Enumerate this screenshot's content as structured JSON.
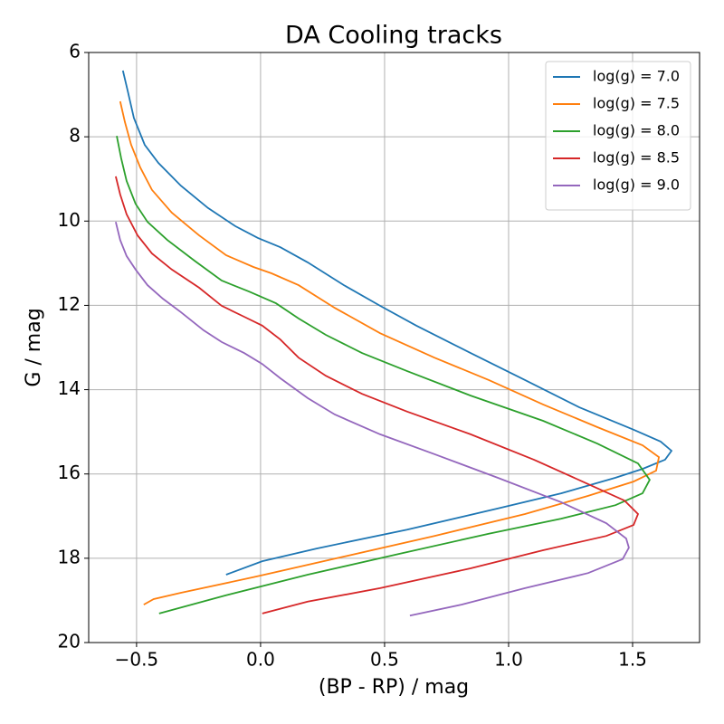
{
  "chart_data": {
    "type": "line",
    "title": "DA Cooling tracks",
    "x_label": "(BP - RP) / mag",
    "y_label": "G / mag",
    "xlim": [
      -0.693,
      1.77
    ],
    "ylim": [
      20,
      6
    ],
    "xticks": [
      {
        "value": -0.5,
        "label": "−0.5"
      },
      {
        "value": 0,
        "label": "0.0"
      },
      {
        "value": 0.5,
        "label": "0.5"
      },
      {
        "value": 1,
        "label": "1.0"
      },
      {
        "value": 1.5,
        "label": "1.5"
      }
    ],
    "yticks": [
      6,
      8,
      10,
      12,
      14,
      16,
      18,
      20
    ],
    "grid": true,
    "legend": "upper right",
    "series": [
      {
        "name": "log(g) = 7.0",
        "color": "#1f77b4",
        "x": [
          -0.555,
          -0.536,
          -0.511,
          -0.467,
          -0.412,
          -0.321,
          -0.212,
          -0.102,
          -0.011,
          0.08,
          0.19,
          0.336,
          0.482,
          0.628,
          0.847,
          1.066,
          1.285,
          1.504,
          1.613,
          1.657,
          1.631,
          1.54,
          1.431,
          1.212,
          0.956,
          0.591,
          0.226,
          0.007,
          -0.139
        ],
        "values": [
          6.43,
          6.9,
          7.55,
          8.19,
          8.62,
          9.16,
          9.69,
          10.12,
          10.4,
          10.62,
          10.98,
          11.52,
          12.01,
          12.48,
          13.13,
          13.77,
          14.42,
          14.95,
          15.23,
          15.45,
          15.66,
          15.88,
          16.09,
          16.46,
          16.82,
          17.32,
          17.77,
          18.07,
          18.39
        ]
      },
      {
        "name": "log(g) = 7.5",
        "color": "#ff7f0e",
        "x": [
          -0.566,
          -0.547,
          -0.522,
          -0.485,
          -0.438,
          -0.358,
          -0.248,
          -0.139,
          -0.029,
          0.044,
          0.153,
          0.299,
          0.482,
          0.701,
          0.92,
          1.139,
          1.358,
          1.54,
          1.606,
          1.595,
          1.504,
          1.321,
          1.066,
          0.701,
          0.336,
          -0.029,
          -0.321,
          -0.431,
          -0.471
        ],
        "values": [
          7.16,
          7.65,
          8.19,
          8.73,
          9.26,
          9.8,
          10.34,
          10.81,
          11.09,
          11.24,
          11.52,
          12.06,
          12.66,
          13.24,
          13.77,
          14.35,
          14.89,
          15.32,
          15.6,
          15.92,
          16.18,
          16.52,
          16.95,
          17.47,
          17.96,
          18.45,
          18.82,
          18.97,
          19.1
        ]
      },
      {
        "name": "log(g) = 8.0",
        "color": "#2ca02c",
        "x": [
          -0.58,
          -0.562,
          -0.54,
          -0.504,
          -0.456,
          -0.376,
          -0.266,
          -0.157,
          -0.047,
          0.062,
          0.153,
          0.263,
          0.409,
          0.591,
          0.847,
          1.139,
          1.358,
          1.522,
          1.569,
          1.54,
          1.431,
          1.212,
          0.92,
          0.555,
          0.19,
          -0.139,
          -0.409
        ],
        "values": [
          7.98,
          8.51,
          9.05,
          9.59,
          10.02,
          10.45,
          10.94,
          11.41,
          11.67,
          11.95,
          12.31,
          12.7,
          13.13,
          13.56,
          14.14,
          14.74,
          15.28,
          15.75,
          16.14,
          16.46,
          16.74,
          17.06,
          17.42,
          17.9,
          18.39,
          18.88,
          19.31
        ]
      },
      {
        "name": "log(g) = 8.5",
        "color": "#d62728",
        "x": [
          -0.584,
          -0.566,
          -0.54,
          -0.496,
          -0.438,
          -0.358,
          -0.248,
          -0.157,
          -0.066,
          0.007,
          0.08,
          0.153,
          0.263,
          0.409,
          0.591,
          0.847,
          1.102,
          1.321,
          1.467,
          1.522,
          1.504,
          1.394,
          1.139,
          0.847,
          0.482,
          0.19,
          0.007
        ],
        "values": [
          8.94,
          9.37,
          9.84,
          10.34,
          10.77,
          11.15,
          11.58,
          12.01,
          12.27,
          12.48,
          12.81,
          13.24,
          13.67,
          14.1,
          14.52,
          15.06,
          15.66,
          16.24,
          16.63,
          16.95,
          17.21,
          17.47,
          17.81,
          18.24,
          18.71,
          19.03,
          19.31
        ]
      },
      {
        "name": "log(g) = 9.0",
        "color": "#9467bd",
        "x": [
          -0.584,
          -0.566,
          -0.54,
          -0.504,
          -0.456,
          -0.394,
          -0.321,
          -0.23,
          -0.157,
          -0.066,
          0.007,
          0.08,
          0.19,
          0.299,
          0.482,
          0.701,
          0.956,
          1.212,
          1.394,
          1.474,
          1.485,
          1.46,
          1.321,
          1.066,
          0.81,
          0.602
        ],
        "values": [
          10.02,
          10.45,
          10.83,
          11.15,
          11.52,
          11.84,
          12.16,
          12.59,
          12.87,
          13.13,
          13.39,
          13.73,
          14.2,
          14.59,
          15.06,
          15.53,
          16.09,
          16.67,
          17.17,
          17.53,
          17.75,
          18.02,
          18.35,
          18.71,
          19.1,
          19.36
        ]
      }
    ]
  }
}
